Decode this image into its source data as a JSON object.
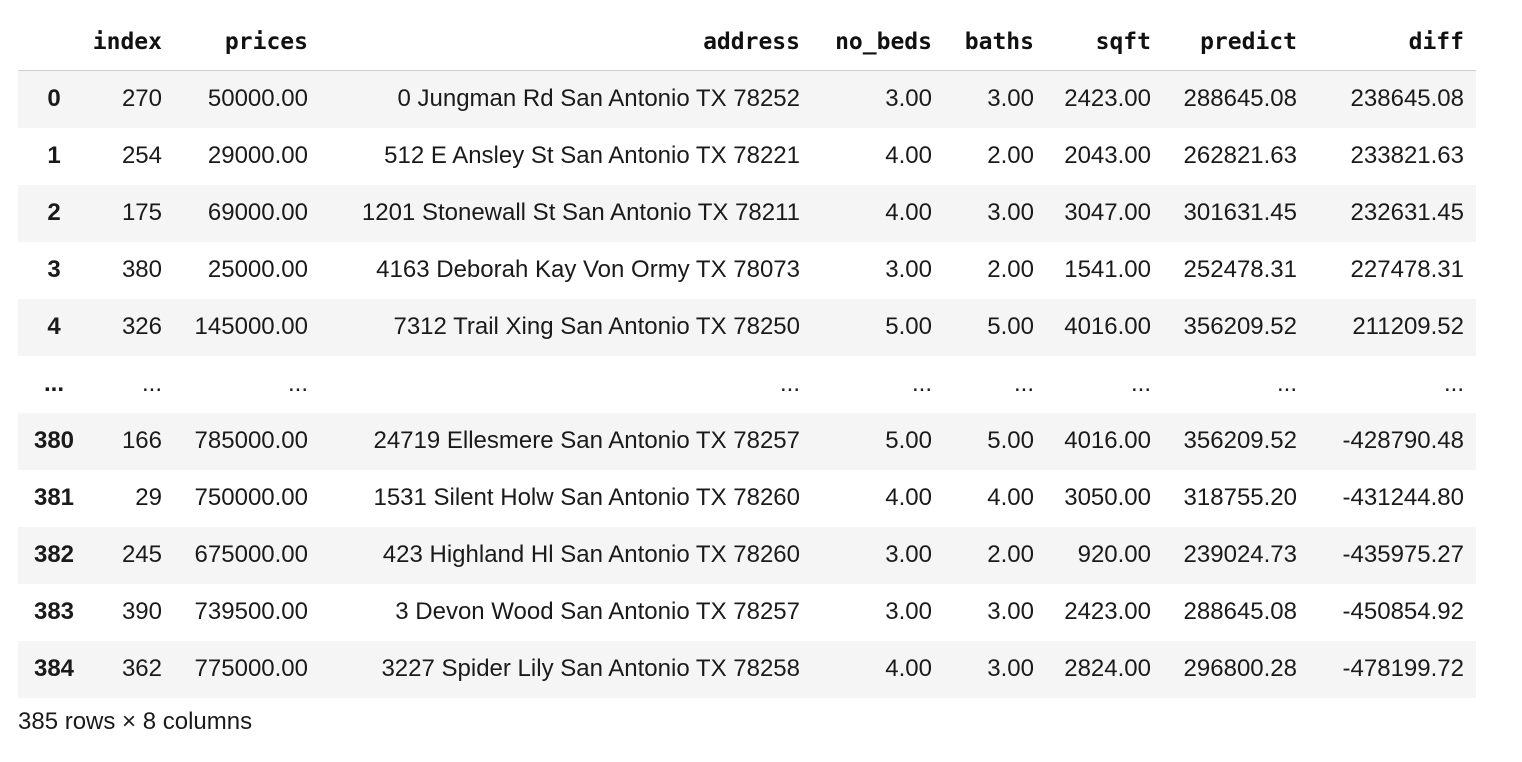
{
  "table": {
    "columns": [
      "",
      "index",
      "prices",
      "address",
      "no_beds",
      "baths",
      "sqft",
      "predict",
      "diff"
    ],
    "rows": [
      {
        "idx": "0",
        "index": "270",
        "prices": "50000.00",
        "address": "0 Jungman Rd San Antonio TX 78252",
        "no_beds": "3.00",
        "baths": "3.00",
        "sqft": "2423.00",
        "predict": "288645.08",
        "diff": "238645.08"
      },
      {
        "idx": "1",
        "index": "254",
        "prices": "29000.00",
        "address": "512 E Ansley St San Antonio TX 78221",
        "no_beds": "4.00",
        "baths": "2.00",
        "sqft": "2043.00",
        "predict": "262821.63",
        "diff": "233821.63"
      },
      {
        "idx": "2",
        "index": "175",
        "prices": "69000.00",
        "address": "1201 Stonewall St San Antonio TX 78211",
        "no_beds": "4.00",
        "baths": "3.00",
        "sqft": "3047.00",
        "predict": "301631.45",
        "diff": "232631.45"
      },
      {
        "idx": "3",
        "index": "380",
        "prices": "25000.00",
        "address": "4163 Deborah Kay Von Ormy TX 78073",
        "no_beds": "3.00",
        "baths": "2.00",
        "sqft": "1541.00",
        "predict": "252478.31",
        "diff": "227478.31"
      },
      {
        "idx": "4",
        "index": "326",
        "prices": "145000.00",
        "address": "7312 Trail Xing San Antonio TX 78250",
        "no_beds": "5.00",
        "baths": "5.00",
        "sqft": "4016.00",
        "predict": "356209.52",
        "diff": "211209.52"
      },
      {
        "idx": "...",
        "index": "...",
        "prices": "...",
        "address": "...",
        "no_beds": "...",
        "baths": "...",
        "sqft": "...",
        "predict": "...",
        "diff": "..."
      },
      {
        "idx": "380",
        "index": "166",
        "prices": "785000.00",
        "address": "24719 Ellesmere San Antonio TX 78257",
        "no_beds": "5.00",
        "baths": "5.00",
        "sqft": "4016.00",
        "predict": "356209.52",
        "diff": "-428790.48"
      },
      {
        "idx": "381",
        "index": "29",
        "prices": "750000.00",
        "address": "1531 Silent Holw San Antonio TX 78260",
        "no_beds": "4.00",
        "baths": "4.00",
        "sqft": "3050.00",
        "predict": "318755.20",
        "diff": "-431244.80"
      },
      {
        "idx": "382",
        "index": "245",
        "prices": "675000.00",
        "address": "423 Highland Hl San Antonio TX 78260",
        "no_beds": "3.00",
        "baths": "2.00",
        "sqft": "920.00",
        "predict": "239024.73",
        "diff": "-435975.27"
      },
      {
        "idx": "383",
        "index": "390",
        "prices": "739500.00",
        "address": "3 Devon Wood San Antonio TX 78257",
        "no_beds": "3.00",
        "baths": "3.00",
        "sqft": "2423.00",
        "predict": "288645.08",
        "diff": "-450854.92"
      },
      {
        "idx": "384",
        "index": "362",
        "prices": "775000.00",
        "address": "3227 Spider Lily San Antonio TX 78258",
        "no_beds": "4.00",
        "baths": "3.00",
        "sqft": "2824.00",
        "predict": "296800.28",
        "diff": "-478199.72"
      }
    ]
  },
  "footer": {
    "shape_text": "385 rows × 8 columns"
  }
}
